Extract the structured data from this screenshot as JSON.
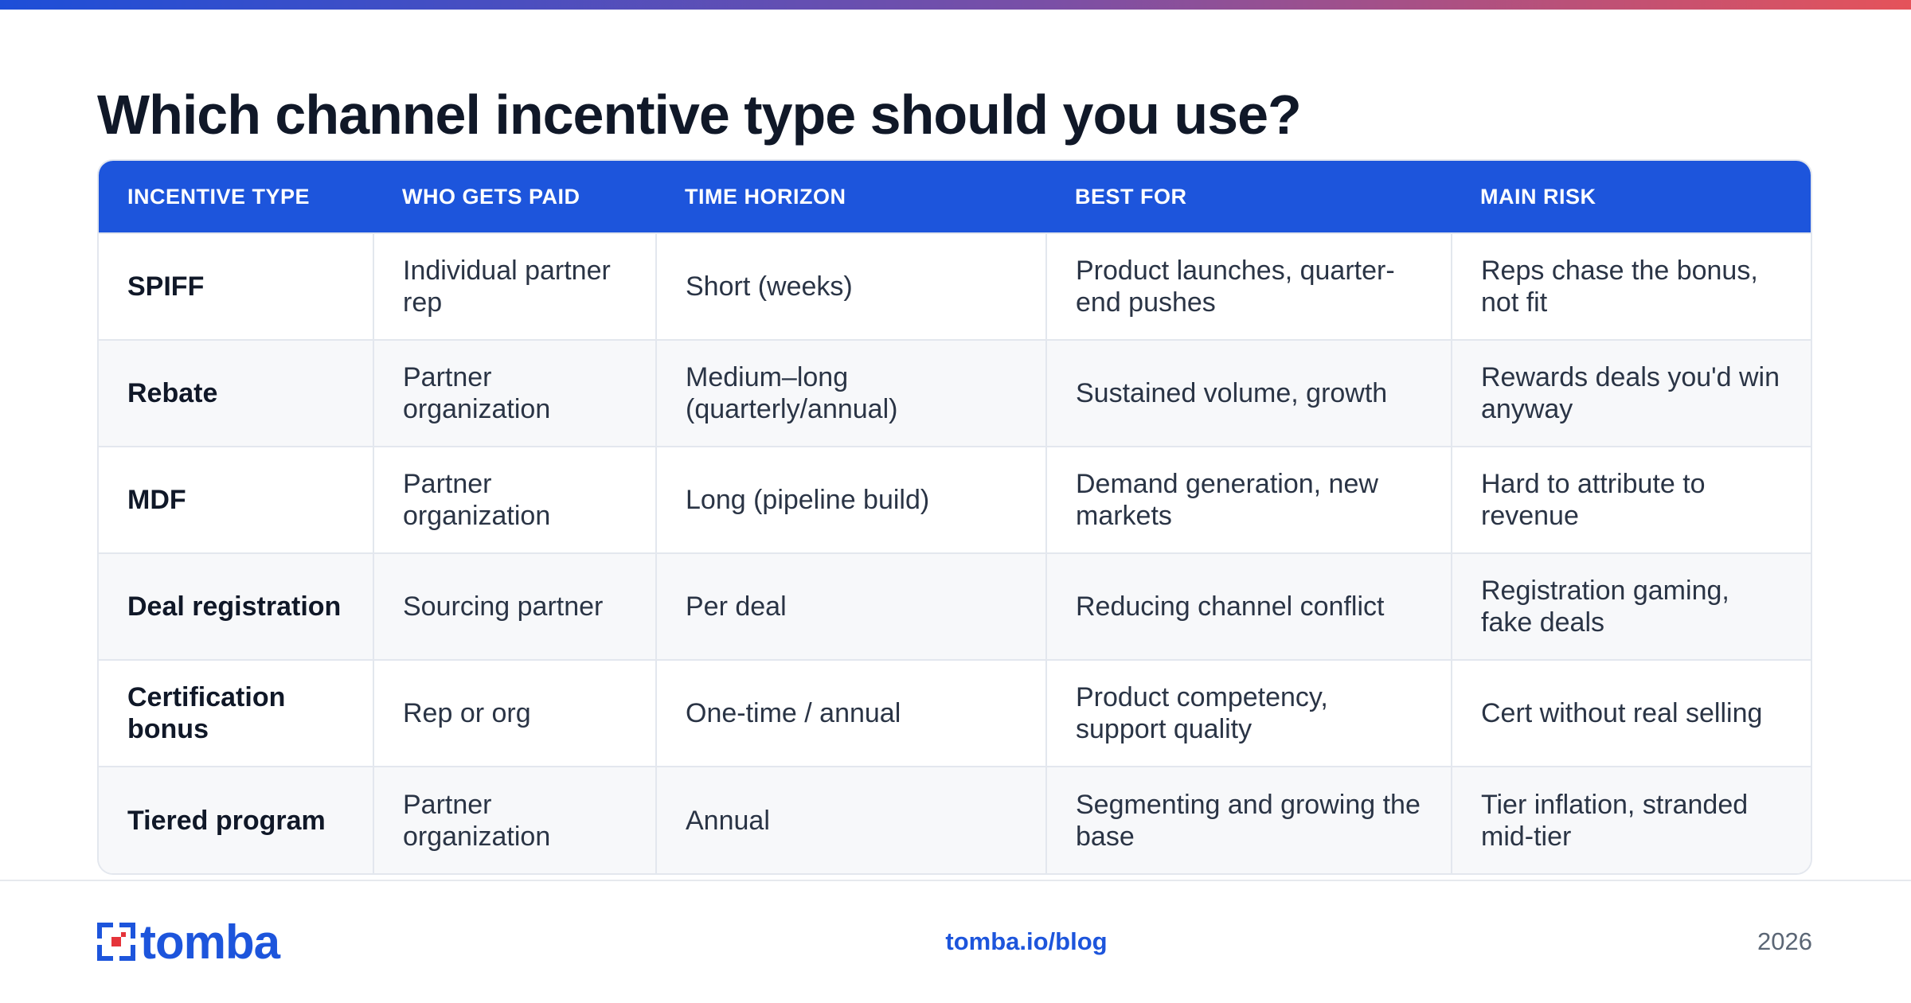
{
  "header": {
    "title": "Which channel incentive type should you use?"
  },
  "table": {
    "columns": [
      "INCENTIVE TYPE",
      "WHO GETS PAID",
      "TIME HORIZON",
      "BEST FOR",
      "MAIN RISK"
    ],
    "rows": [
      [
        "SPIFF",
        "Individual partner rep",
        "Short (weeks)",
        "Product launches, quarter-end pushes",
        "Reps chase the bonus, not fit"
      ],
      [
        "Rebate",
        "Partner organization",
        "Medium–long (quarterly/annual)",
        "Sustained volume, growth",
        "Rewards deals you'd win anyway"
      ],
      [
        "MDF",
        "Partner organization",
        "Long (pipeline build)",
        "Demand generation, new markets",
        "Hard to attribute to revenue"
      ],
      [
        "Deal registration",
        "Sourcing partner",
        "Per deal",
        "Reducing channel conflict",
        "Registration gaming, fake deals"
      ],
      [
        "Certification bonus",
        "Rep or org",
        "One-time / annual",
        "Product competency, support quality",
        "Cert without real selling"
      ],
      [
        "Tiered program",
        "Partner organization",
        "Annual",
        "Segmenting and growing the base",
        "Tier inflation, stranded mid-tier"
      ]
    ]
  },
  "footer": {
    "logo": "tomba",
    "link": "tomba.io/blog",
    "year": "2026"
  }
}
